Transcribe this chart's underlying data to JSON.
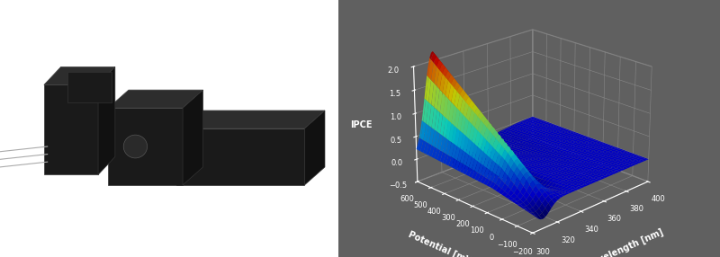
{
  "xlabel": "Wavelength [nm]",
  "ylabel": "Potential [mV]",
  "zlabel": "IPCE",
  "background_color": "#606060",
  "pane_color": [
    0.38,
    0.38,
    0.38,
    1.0
  ],
  "elev": 22,
  "azim": -135,
  "wavelength_ticks": [
    300,
    320,
    340,
    360,
    380,
    400
  ],
  "potential_ticks": [
    -200,
    -100,
    0,
    100,
    200,
    300,
    400,
    500,
    600
  ],
  "ipce_ticks": [
    -0.5,
    0,
    0.5,
    1,
    1.5,
    2
  ],
  "tick_fontsize": 6,
  "label_fontsize": 7
}
